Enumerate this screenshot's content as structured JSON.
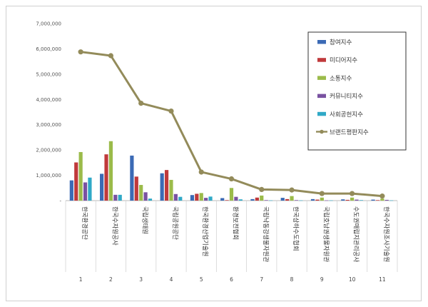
{
  "chart_data": {
    "type": "bar",
    "title": "",
    "xlabel": "",
    "ylabel": "",
    "ylim": [
      0,
      7000000
    ],
    "yticks": [
      "-",
      "1,000,000",
      "2,000,000",
      "3,000,000",
      "4,000,000",
      "5,000,000",
      "6,000,000",
      "7,000,000"
    ],
    "grid": false,
    "legend_position": "top-right",
    "categories": [
      "한국환경공단",
      "한국수자원공사",
      "국립생태원",
      "국립공원공단",
      "한국환경산업기술원",
      "환경보전협회",
      "국립낙동강생물자원관",
      "한국상하수도협회",
      "국립호남권생물자원관",
      "수도권매립지관리공사",
      "한국수자원조사기술원"
    ],
    "category_index": [
      "1",
      "2",
      "3",
      "4",
      "5",
      "6",
      "7",
      "8",
      "9",
      "10",
      "11"
    ],
    "series": [
      {
        "name": "참여지수",
        "color": "#3b6ab5",
        "values": [
          800000,
          1060000,
          1780000,
          1080000,
          220000,
          100000,
          60000,
          110000,
          60000,
          50000,
          40000
        ]
      },
      {
        "name": "미디어지수",
        "color": "#c0393b",
        "values": [
          1510000,
          1830000,
          950000,
          1210000,
          270000,
          20000,
          120000,
          60000,
          40000,
          30000,
          20000
        ]
      },
      {
        "name": "소통지수",
        "color": "#9bbb4a",
        "values": [
          1920000,
          2350000,
          620000,
          820000,
          300000,
          500000,
          200000,
          180000,
          120000,
          120000,
          80000
        ]
      },
      {
        "name": "커뮤니티지수",
        "color": "#7952a1",
        "values": [
          720000,
          230000,
          330000,
          260000,
          110000,
          150000,
          20000,
          20000,
          10000,
          40000,
          30000
        ]
      },
      {
        "name": "사회공헌지수",
        "color": "#30a9c7",
        "values": [
          910000,
          230000,
          80000,
          150000,
          160000,
          50000,
          10000,
          10000,
          10000,
          20000,
          10000
        ]
      }
    ],
    "line_series": {
      "name": "브랜드평판지수",
      "color": "#938b5a",
      "values": [
        5880000,
        5730000,
        3850000,
        3540000,
        1130000,
        860000,
        440000,
        420000,
        280000,
        280000,
        180000
      ]
    }
  }
}
